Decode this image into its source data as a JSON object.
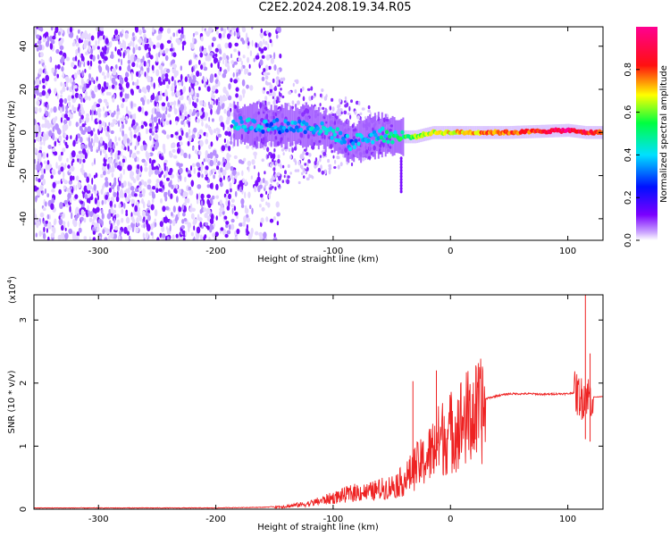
{
  "title": "C2E2.2024.208.19.34.R05",
  "chart_data": [
    {
      "type": "heatmap",
      "title": "",
      "xlabel": "Height of straight line (km)",
      "ylabel": "Frequency (Hz)",
      "xlim": [
        -355,
        130
      ],
      "ylim": [
        -50,
        49
      ],
      "xticks": [
        -300,
        -200,
        -100,
        0,
        100
      ],
      "yticks": [
        -40,
        -20,
        0,
        20,
        40
      ],
      "colorbar": {
        "label": "Normalized spectral amplitude",
        "range": [
          0.0,
          1.0
        ],
        "ticks": [
          "0.0",
          "0.2",
          "0.4",
          "0.6",
          "0.8"
        ],
        "tick_values": [
          0.0,
          0.2,
          0.4,
          0.6,
          0.8
        ],
        "colors": [
          "#ffffff",
          "#7a00ff",
          "#0000ff",
          "#00ffff",
          "#00ff00",
          "#ffff00",
          "#ff0000",
          "#ff0080"
        ]
      },
      "noise_region_x": [
        -355,
        -155
      ],
      "trace": [
        {
          "x": -185,
          "y": 4,
          "amp": 0.45
        },
        {
          "x": -150,
          "y": 3,
          "amp": 0.35
        },
        {
          "x": -120,
          "y": 3,
          "amp": 0.4
        },
        {
          "x": -100,
          "y": 0,
          "amp": 0.4
        },
        {
          "x": -85,
          "y": -5,
          "amp": 0.35
        },
        {
          "x": -75,
          "y": -3,
          "amp": 0.4
        },
        {
          "x": -60,
          "y": -1,
          "amp": 0.45
        },
        {
          "x": -45,
          "y": -2,
          "amp": 0.5
        },
        {
          "x": -30,
          "y": -2,
          "amp": 0.6
        },
        {
          "x": -15,
          "y": 0,
          "amp": 0.65
        },
        {
          "x": 0,
          "y": 0,
          "amp": 0.7
        },
        {
          "x": 20,
          "y": 0,
          "amp": 0.75
        },
        {
          "x": 50,
          "y": 0,
          "amp": 0.8
        },
        {
          "x": 75,
          "y": 0.5,
          "amp": 0.85
        },
        {
          "x": 100,
          "y": 1,
          "amp": 0.95
        },
        {
          "x": 115,
          "y": 0,
          "amp": 0.85
        },
        {
          "x": 130,
          "y": 0,
          "amp": 0.8
        }
      ]
    },
    {
      "type": "line",
      "title": "",
      "xlabel": "Height of straight line (km)",
      "ylabel": "SNR (10 * v/v)",
      "ylabel_scale": "(x10",
      "ylabel_scale_exp": "4",
      "ylabel_scale_close": ")",
      "xlim": [
        -355,
        130
      ],
      "ylim": [
        0,
        3.4
      ],
      "xticks": [
        -300,
        -200,
        -100,
        0,
        100
      ],
      "yticks": [
        0,
        1,
        2,
        3
      ],
      "line_color": "#ee2222",
      "series": [
        {
          "x": [
            -355,
            -300,
            -250,
            -200,
            -160,
            -140,
            -120,
            -110,
            -100,
            -90,
            -80,
            -70,
            -60,
            -50,
            -40,
            -35,
            -30,
            -25,
            -20,
            -15,
            -10,
            -5,
            0,
            5,
            10,
            20,
            30,
            40,
            50,
            60,
            70,
            80,
            90,
            100,
            105,
            110,
            112,
            115,
            117,
            120,
            125,
            130
          ],
          "y": [
            0.02,
            0.02,
            0.02,
            0.02,
            0.03,
            0.05,
            0.1,
            0.15,
            0.2,
            0.25,
            0.3,
            0.3,
            0.35,
            0.4,
            0.5,
            0.6,
            0.75,
            0.8,
            0.9,
            1.05,
            1.2,
            1.3,
            1.35,
            1.45,
            1.55,
            1.65,
            1.75,
            1.8,
            1.83,
            1.83,
            1.83,
            1.82,
            1.83,
            1.83,
            1.85,
            1.8,
            1.75,
            1.85,
            1.8,
            1.78,
            1.78,
            1.79
          ]
        }
      ],
      "spikes": [
        {
          "x": -32,
          "y": 2.03
        },
        {
          "x": -12,
          "y": 2.2
        },
        {
          "x": 115,
          "y": 3.42
        },
        {
          "x": 119,
          "y": 2.47
        }
      ]
    }
  ]
}
